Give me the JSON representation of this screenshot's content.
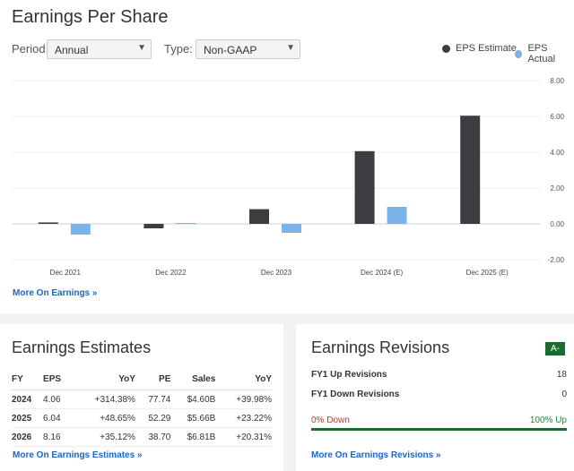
{
  "eps": {
    "title": "Earnings Per Share",
    "period_label": "Period:",
    "period_value": "Annual",
    "type_label": "Type:",
    "type_value": "Non-GAAP",
    "legend_estimate": "EPS Estimate",
    "legend_actual": "EPS Actual",
    "more_link": "More On Earnings »"
  },
  "colors": {
    "estimate": "#3d3c40",
    "actual": "#7ab3ea",
    "accent": "#1c6b2e",
    "link": "#1a66c7"
  },
  "chart_data": {
    "type": "bar",
    "categories": [
      "Dec 2021",
      "Dec 2022",
      "Dec 2023",
      "Dec 2024 (E)",
      "Dec 2025 (E)"
    ],
    "series": [
      {
        "name": "EPS Estimate",
        "values": [
          0.08,
          -0.25,
          0.82,
          4.06,
          6.04
        ]
      },
      {
        "name": "EPS Actual",
        "values": [
          -0.6,
          0.05,
          -0.5,
          0.95,
          null
        ]
      }
    ],
    "yticks": [
      "8.00",
      "6.00",
      "4.00",
      "2.00",
      "0.00",
      "-2.00"
    ],
    "ylim": [
      -2,
      8
    ],
    "grid": true,
    "legend": "top-right",
    "xlabel": "",
    "ylabel": ""
  },
  "estimates": {
    "title": "Earnings Estimates",
    "headers": [
      "FY",
      "EPS",
      "YoY",
      "PE",
      "Sales",
      "YoY"
    ],
    "rows": [
      [
        "2024",
        "4.06",
        "+314.38%",
        "77.74",
        "$4.60B",
        "+39.98%"
      ],
      [
        "2025",
        "6.04",
        "+48.65%",
        "52.29",
        "$5.66B",
        "+23.22%"
      ],
      [
        "2026",
        "8.16",
        "+35.12%",
        "38.70",
        "$6.81B",
        "+20.31%"
      ]
    ],
    "more_link": "More On Earnings Estimates »"
  },
  "revisions": {
    "title": "Earnings Revisions",
    "grade": "A-",
    "up_label": "FY1 Up Revisions",
    "up_value": "18",
    "down_label": "FY1 Down Revisions",
    "down_value": "0",
    "down_pct": "0% Down",
    "up_pct": "100% Up",
    "up_fraction": 1.0,
    "more_link": "More On Earnings Revisions »"
  }
}
